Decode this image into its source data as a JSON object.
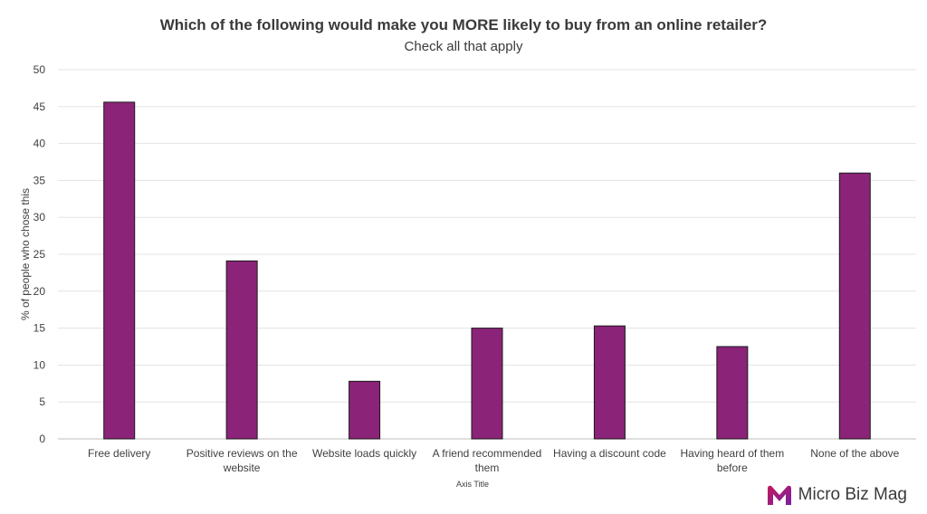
{
  "chart_data": {
    "type": "bar",
    "title": "Which of the following would make you MORE likely to buy from an online retailer?",
    "subtitle": "Check all that apply",
    "xlabel": "Axis Title",
    "ylabel": "% of people who chose this",
    "ylim": [
      0,
      50
    ],
    "yticks": [
      0,
      5,
      10,
      15,
      20,
      25,
      30,
      35,
      40,
      45,
      50
    ],
    "grid": true,
    "categories": [
      [
        "Free delivery"
      ],
      [
        "Positive reviews on the",
        "website"
      ],
      [
        "Website loads quickly"
      ],
      [
        "A friend recommended",
        "them"
      ],
      [
        "Having a discount code"
      ],
      [
        "Having heard of them",
        "before"
      ],
      [
        "None of the above"
      ]
    ],
    "values": [
      45.6,
      24.1,
      7.8,
      15.0,
      15.3,
      12.5,
      36.0
    ],
    "bar_color": "#8B2379",
    "bar_stroke": "#1a1a1a"
  },
  "logo": {
    "text": "Micro Biz Mag",
    "colors": [
      "#c2185b",
      "#7b1fa2"
    ]
  }
}
